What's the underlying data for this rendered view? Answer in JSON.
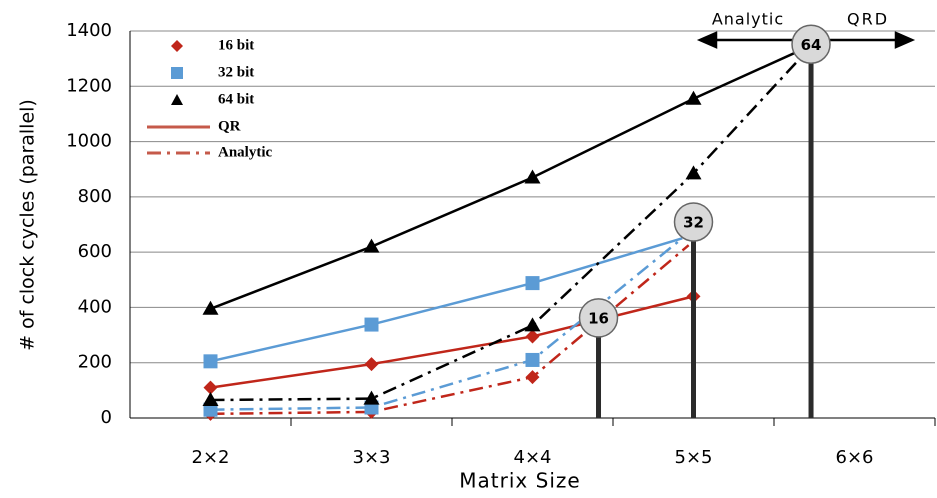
{
  "chart_data": {
    "type": "line",
    "x_label": "Matrix Size",
    "y_label": "# of clock cycles (parallel)",
    "xlim": [
      1.5,
      6.5
    ],
    "ylim": [
      0,
      1400
    ],
    "xticks": [
      {
        "value": 2,
        "label": "2×2"
      },
      {
        "value": 3,
        "label": "3×3"
      },
      {
        "value": 4,
        "label": "4×4"
      },
      {
        "value": 5,
        "label": "5×5"
      },
      {
        "value": 6,
        "label": "6×6"
      }
    ],
    "yticks": [
      0,
      200,
      400,
      600,
      800,
      1000,
      1200,
      1400
    ],
    "grid": true,
    "styles": [
      {
        "name": "QR",
        "dash": "solid"
      },
      {
        "name": "Analytic",
        "dash": "dash-dot"
      }
    ],
    "series": [
      {
        "name": "16 bit",
        "color": "#c0261a",
        "marker": "diamond",
        "lines": [
          {
            "x": [
              2,
              3,
              4,
              5
            ],
            "values": [
              110,
              195,
              295,
              440
            ]
          },
          {
            "x": [
              2,
              3,
              4,
              4.97
            ],
            "values": [
              15,
              22,
              148,
              625
            ]
          }
        ]
      },
      {
        "name": "32 bit",
        "color": "#5b9bd5",
        "marker": "square",
        "lines": [
          {
            "x": [
              2,
              3,
              4,
              4.93
            ],
            "values": [
              205,
              338,
              488,
              650
            ]
          },
          {
            "x": [
              2,
              3,
              4,
              4.93
            ],
            "values": [
              30,
              38,
              210,
              650
            ]
          }
        ]
      },
      {
        "name": "64 bit",
        "color": "#000000",
        "marker": "triangle",
        "lines": [
          {
            "x": [
              2,
              3,
              4,
              5,
              5.74
            ],
            "values": [
              395,
              620,
              870,
              1155,
              1350
            ]
          },
          {
            "x": [
              2,
              3,
              4,
              5,
              5.74
            ],
            "values": [
              65,
              70,
              335,
              885,
              1350
            ]
          }
        ]
      }
    ],
    "crossovers": [
      {
        "label": "16",
        "x": 4.41,
        "y": 362
      },
      {
        "label": "32",
        "x": 5,
        "y": 709
      },
      {
        "label": "64",
        "x": 5.73,
        "y": 1352
      }
    ],
    "arrow_labels": [
      "Analytic",
      "QRD"
    ]
  }
}
